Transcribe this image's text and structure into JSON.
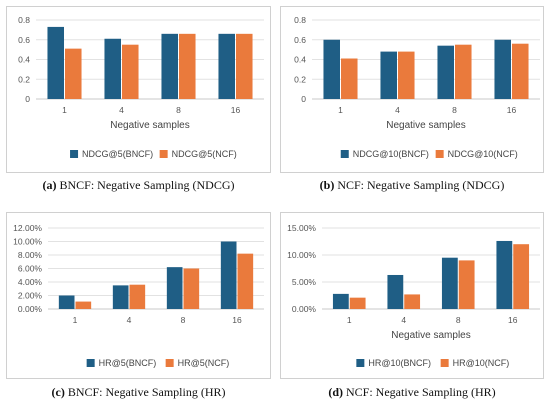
{
  "colors": {
    "bncf": "#1f5e85",
    "ncf": "#ea7a3c",
    "grid": "#e2e2e2",
    "axis": "#c8c8c8"
  },
  "captions": [
    {
      "letter": "(a)",
      "text": "BNCF: Negative Sampling (NDCG)"
    },
    {
      "letter": "(b)",
      "text": "NCF: Negative Sampling (NDCG)"
    },
    {
      "letter": "(c)",
      "text": "BNCF: Negative Sampling (HR)"
    },
    {
      "letter": "(d)",
      "text": "NCF: Negative Sampling (HR)"
    }
  ],
  "chart_data": [
    {
      "type": "bar",
      "xlabel": "Negative samples",
      "categories": [
        "1",
        "4",
        "8",
        "16"
      ],
      "ylim": [
        0,
        0.8
      ],
      "yticks": [
        "0",
        "0.2",
        "0.4",
        "0.6",
        "0.8"
      ],
      "series": [
        {
          "name": "NDCG@5(BNCF)",
          "values": [
            0.73,
            0.61,
            0.66,
            0.66
          ]
        },
        {
          "name": "NDCG@5(NCF)",
          "values": [
            0.51,
            0.55,
            0.66,
            0.66
          ]
        }
      ],
      "grid": true,
      "legend": "bottom"
    },
    {
      "type": "bar",
      "xlabel": "Negative samples",
      "categories": [
        "1",
        "4",
        "8",
        "16"
      ],
      "ylim": [
        0,
        0.8
      ],
      "yticks": [
        "0",
        "0.2",
        "0.4",
        "0.6",
        "0.8"
      ],
      "series": [
        {
          "name": "NDCG@10(BNCF)",
          "values": [
            0.6,
            0.48,
            0.54,
            0.6
          ]
        },
        {
          "name": "NDCG@10(NCF)",
          "values": [
            0.41,
            0.48,
            0.55,
            0.56
          ]
        }
      ],
      "grid": true,
      "legend": "bottom"
    },
    {
      "type": "bar",
      "xlabel": "",
      "categories": [
        "1",
        "4",
        "8",
        "16"
      ],
      "ylim": [
        0,
        12
      ],
      "yticks": [
        "0.00%",
        "2.00%",
        "4.00%",
        "6.00%",
        "8.00%",
        "10.00%",
        "12.00%"
      ],
      "series": [
        {
          "name": "HR@5(BNCF)",
          "values": [
            2.0,
            3.5,
            6.2,
            10.0
          ]
        },
        {
          "name": "HR@5(NCF)",
          "values": [
            1.1,
            3.6,
            6.0,
            8.2
          ]
        }
      ],
      "grid": true,
      "legend": "bottom"
    },
    {
      "type": "bar",
      "xlabel": "Negative samples",
      "categories": [
        "1",
        "4",
        "8",
        "16"
      ],
      "ylim": [
        0,
        15
      ],
      "yticks": [
        "0.00%",
        "5.00%",
        "10.00%",
        "15.00%"
      ],
      "series": [
        {
          "name": "HR@10(BNCF)",
          "values": [
            2.8,
            6.3,
            9.5,
            12.6
          ]
        },
        {
          "name": "HR@10(NCF)",
          "values": [
            2.1,
            2.7,
            9.0,
            12.0
          ]
        }
      ],
      "grid": true,
      "legend": "bottom"
    }
  ]
}
